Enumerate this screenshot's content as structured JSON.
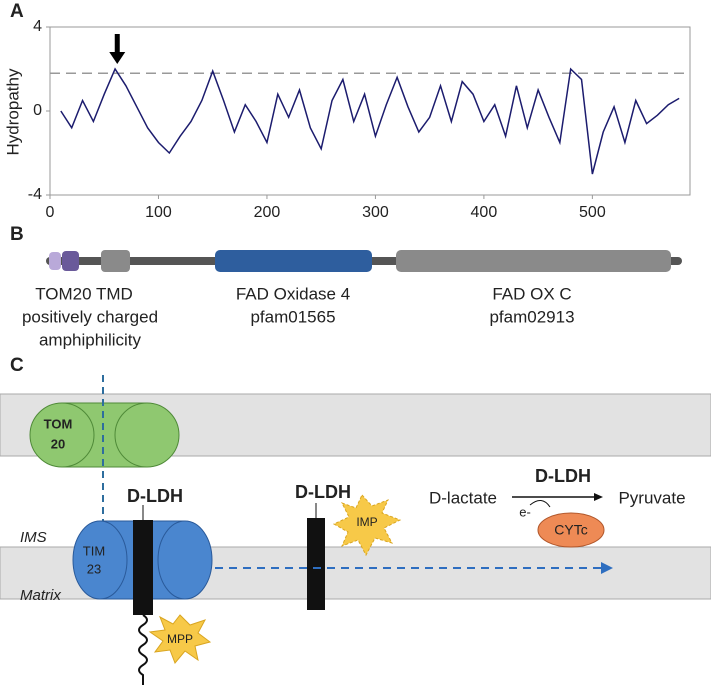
{
  "chart_data": {
    "type": "line",
    "panel_label": "A",
    "y_label": "Hydropathy",
    "x": [
      10,
      20,
      30,
      40,
      50,
      60,
      70,
      80,
      90,
      100,
      110,
      120,
      130,
      140,
      150,
      160,
      170,
      180,
      190,
      200,
      210,
      220,
      230,
      240,
      250,
      260,
      270,
      280,
      290,
      300,
      310,
      320,
      330,
      340,
      350,
      360,
      370,
      380,
      390,
      400,
      410,
      420,
      430,
      440,
      450,
      460,
      470,
      480,
      490,
      500,
      510,
      520,
      530,
      540,
      550,
      560,
      570,
      580
    ],
    "values": [
      0.0,
      -0.8,
      0.5,
      -0.5,
      0.8,
      2.0,
      1.2,
      0.2,
      -0.8,
      -1.5,
      -2.0,
      -1.2,
      -0.5,
      0.5,
      1.9,
      0.5,
      -1.0,
      0.3,
      -0.5,
      -1.5,
      0.8,
      -0.3,
      1.0,
      -0.8,
      -1.8,
      0.5,
      1.5,
      -0.5,
      0.8,
      -1.2,
      0.3,
      1.6,
      0.2,
      -1.0,
      -0.3,
      1.2,
      -0.5,
      1.4,
      0.8,
      -0.5,
      0.3,
      -1.2,
      1.2,
      -0.8,
      1.0,
      -0.3,
      -1.5,
      2.0,
      1.5,
      -3.0,
      -1.0,
      0.2,
      -1.5,
      0.5,
      -0.6,
      -0.2,
      0.3,
      0.6
    ],
    "color": "#1c1c6e",
    "reference_line": 1.8,
    "arrow_at": 62,
    "xlim": [
      0,
      590
    ],
    "xticks": [
      0,
      100,
      200,
      300,
      400,
      500
    ],
    "ylim": [
      -4,
      4
    ],
    "yticks": [
      -4,
      0,
      4
    ]
  },
  "panel_b": {
    "panel_label": "B",
    "tom20_tmd": "TOM20 TMD",
    "charge": "positively charged",
    "amphiphilicity": "amphiphilicity",
    "domain1": "FAD Oxidase 4",
    "domain1_id": "pfam01565",
    "domain2": "FAD OX C",
    "domain2_id": "pfam02913"
  },
  "panel_c": {
    "panel_label": "C",
    "tom": "TOM",
    "tom_num": "20",
    "tim": "TIM",
    "tim_num": "23",
    "dldh1": "D-LDH",
    "dldh2": "D-LDH",
    "imp": "IMP",
    "mpp": "MPP",
    "ims": "IMS",
    "matrix": "Matrix",
    "reaction_enzyme": "D-LDH",
    "substrate": "D-lactate",
    "product": "Pyruvate",
    "electron": "e-",
    "cytc": "CYTc"
  }
}
